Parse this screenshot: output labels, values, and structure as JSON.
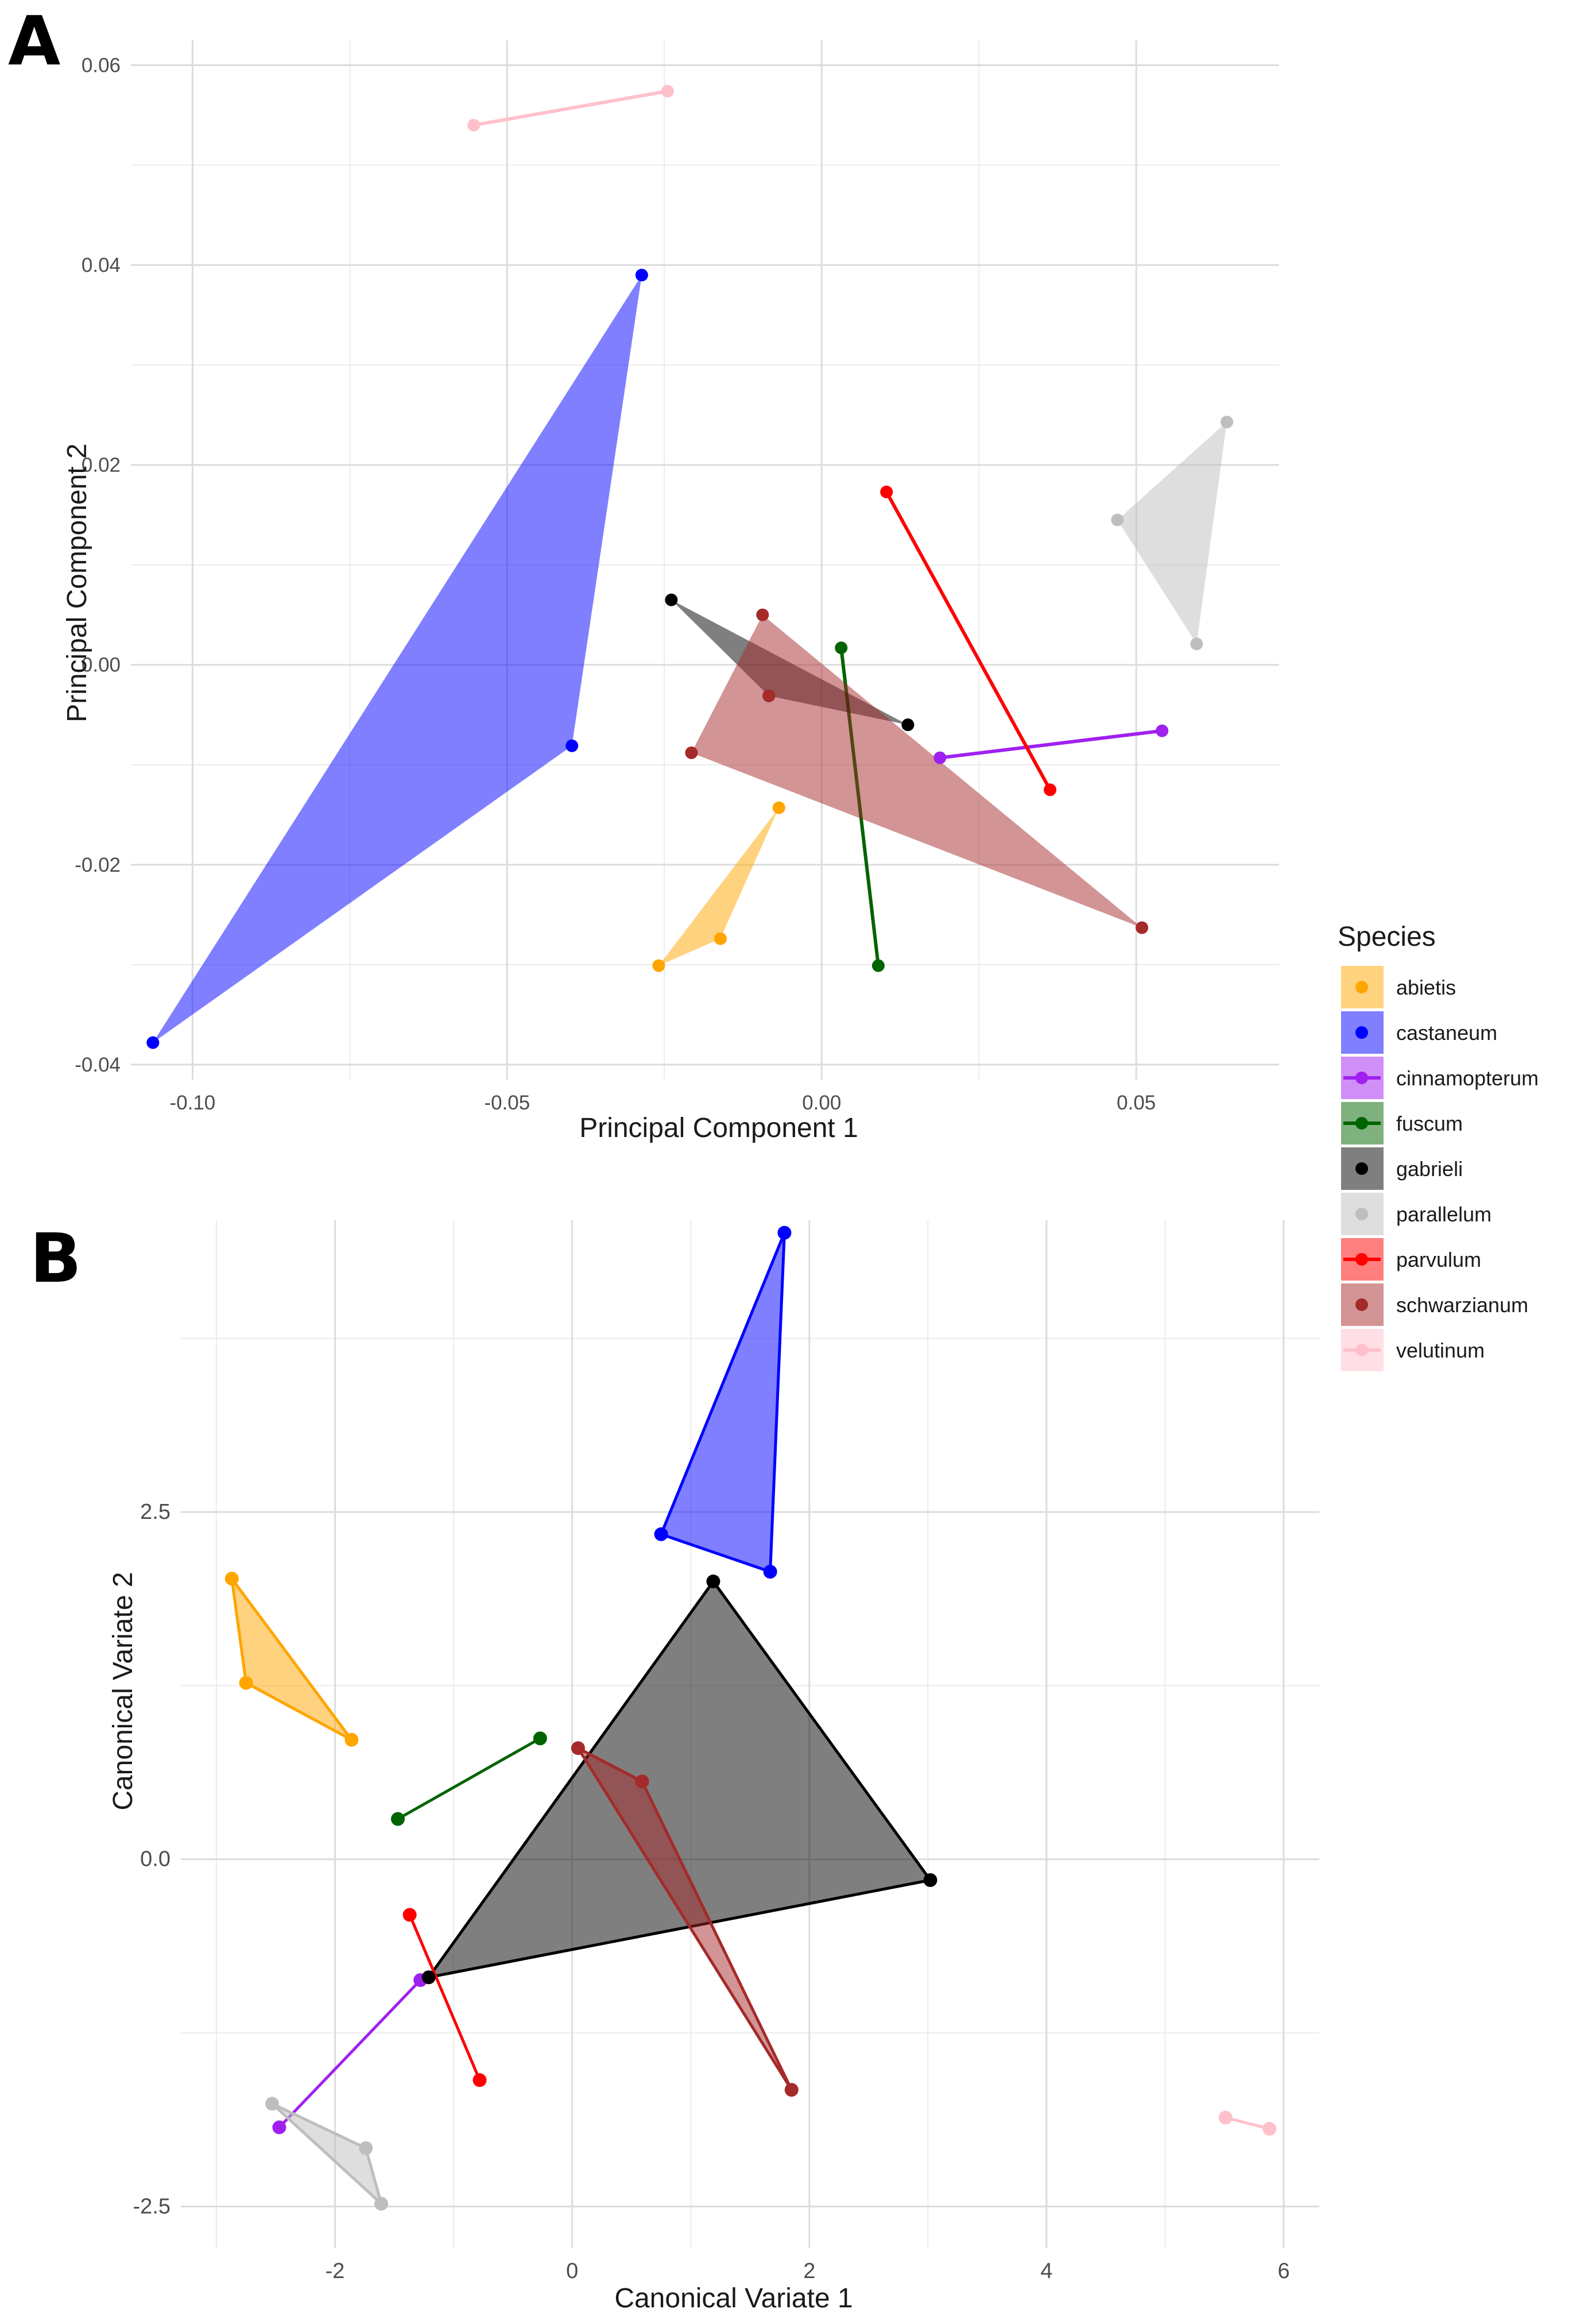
{
  "figure": {
    "species": [
      {
        "name": "abietis",
        "color": "#FFA500"
      },
      {
        "name": "castaneum",
        "color": "#0000FF"
      },
      {
        "name": "cinnamopterum",
        "color": "#A020F0"
      },
      {
        "name": "fuscum",
        "color": "#006400"
      },
      {
        "name": "gabrieli",
        "color": "#000000"
      },
      {
        "name": "parallelum",
        "color": "#BEBEBE"
      },
      {
        "name": "parvulum",
        "color": "#FF0000"
      },
      {
        "name": "schwarzianum",
        "color": "#A52A2A"
      },
      {
        "name": "velutinum",
        "color": "#FFC0CB"
      }
    ],
    "legend": {
      "title": "Species"
    }
  },
  "chart_data": [
    {
      "panel": "A",
      "type": "scatter",
      "xlabel": "Principal Component 1",
      "ylabel": "Principal Component 2",
      "xlim": [
        -0.1098,
        0.0727
      ],
      "ylim": [
        -0.0415,
        0.0625
      ],
      "xticks": [
        -0.1,
        -0.05,
        0.0,
        0.05
      ],
      "xtick_labels": [
        "-0.10",
        "-0.05",
        "0.00",
        "0.05"
      ],
      "yticks": [
        -0.04,
        -0.02,
        0.0,
        0.02,
        0.04,
        0.06
      ],
      "ytick_labels": [
        "-0.04",
        "-0.02",
        "0.00",
        "0.02",
        "0.04",
        "0.06"
      ],
      "series": [
        {
          "name": "abietis",
          "points": [
            [
              -0.0068,
              -0.0143
            ],
            [
              -0.0259,
              -0.0301
            ],
            [
              -0.0161,
              -0.0274
            ]
          ]
        },
        {
          "name": "castaneum",
          "points": [
            [
              -0.0286,
              0.039
            ],
            [
              -0.0397,
              -0.0081
            ],
            [
              -0.1063,
              -0.0378
            ]
          ]
        },
        {
          "name": "cinnamopterum",
          "points": [
            [
              0.0188,
              -0.0093
            ],
            [
              0.0541,
              -0.0066
            ]
          ]
        },
        {
          "name": "fuscum",
          "points": [
            [
              0.0031,
              0.0017
            ],
            [
              0.009,
              -0.0301
            ]
          ]
        },
        {
          "name": "gabrieli",
          "points": [
            [
              -0.0239,
              0.0065
            ],
            [
              0.0137,
              -0.006
            ],
            [
              -0.0084,
              -0.0031
            ]
          ]
        },
        {
          "name": "parallelum",
          "points": [
            [
              0.0644,
              0.0243
            ],
            [
              0.047,
              0.0145
            ],
            [
              0.0596,
              0.0021
            ]
          ]
        },
        {
          "name": "parvulum",
          "points": [
            [
              0.0103,
              0.0173
            ],
            [
              0.0363,
              -0.0125
            ]
          ]
        },
        {
          "name": "schwarzianum",
          "points": [
            [
              -0.0094,
              0.005
            ],
            [
              -0.0207,
              -0.0088
            ],
            [
              0.0509,
              -0.0263
            ],
            [
              -0.0084,
              -0.0031
            ]
          ]
        },
        {
          "name": "velutinum",
          "points": [
            [
              -0.0553,
              0.054
            ],
            [
              -0.0245,
              0.0574
            ]
          ]
        }
      ]
    },
    {
      "panel": "B",
      "type": "scatter",
      "xlabel": "Canonical Variate 1",
      "ylabel": "Canonical Variate 2",
      "xlim": [
        -3.3,
        6.3
      ],
      "ylim": [
        -2.8,
        4.6
      ],
      "xticks": [
        -2,
        0,
        2,
        4,
        6
      ],
      "xtick_labels": [
        "-2",
        "0",
        "2",
        "4",
        "6"
      ],
      "yticks": [
        -2.5,
        0.0,
        2.5
      ],
      "ytick_labels": [
        "-2.5",
        "0.0",
        "2.5"
      ],
      "series": [
        {
          "name": "abietis",
          "points": [
            [
              -2.87,
              2.02
            ],
            [
              -2.75,
              1.27
            ],
            [
              -1.86,
              0.86
            ]
          ]
        },
        {
          "name": "castaneum",
          "points": [
            [
              1.79,
              4.51
            ],
            [
              0.75,
              2.34
            ],
            [
              1.67,
              2.07
            ]
          ]
        },
        {
          "name": "cinnamopterum",
          "points": [
            [
              -1.28,
              -0.87
            ],
            [
              -2.47,
              -1.93
            ]
          ]
        },
        {
          "name": "fuscum",
          "points": [
            [
              -1.47,
              0.29
            ],
            [
              -0.27,
              0.87
            ]
          ]
        },
        {
          "name": "gabrieli",
          "points": [
            [
              1.19,
              2.0
            ],
            [
              3.02,
              -0.15
            ],
            [
              -1.21,
              -0.85
            ]
          ]
        },
        {
          "name": "parallelum",
          "points": [
            [
              -2.53,
              -1.76
            ],
            [
              -1.74,
              -2.08
            ],
            [
              -1.61,
              -2.48
            ]
          ]
        },
        {
          "name": "parvulum",
          "points": [
            [
              -1.37,
              -0.4
            ],
            [
              -0.78,
              -1.59
            ]
          ]
        },
        {
          "name": "schwarzianum",
          "points": [
            [
              0.05,
              0.8
            ],
            [
              0.59,
              0.56
            ],
            [
              1.85,
              -1.66
            ]
          ]
        },
        {
          "name": "velutinum",
          "points": [
            [
              5.51,
              -1.86
            ],
            [
              5.88,
              -1.94
            ]
          ]
        }
      ]
    }
  ]
}
